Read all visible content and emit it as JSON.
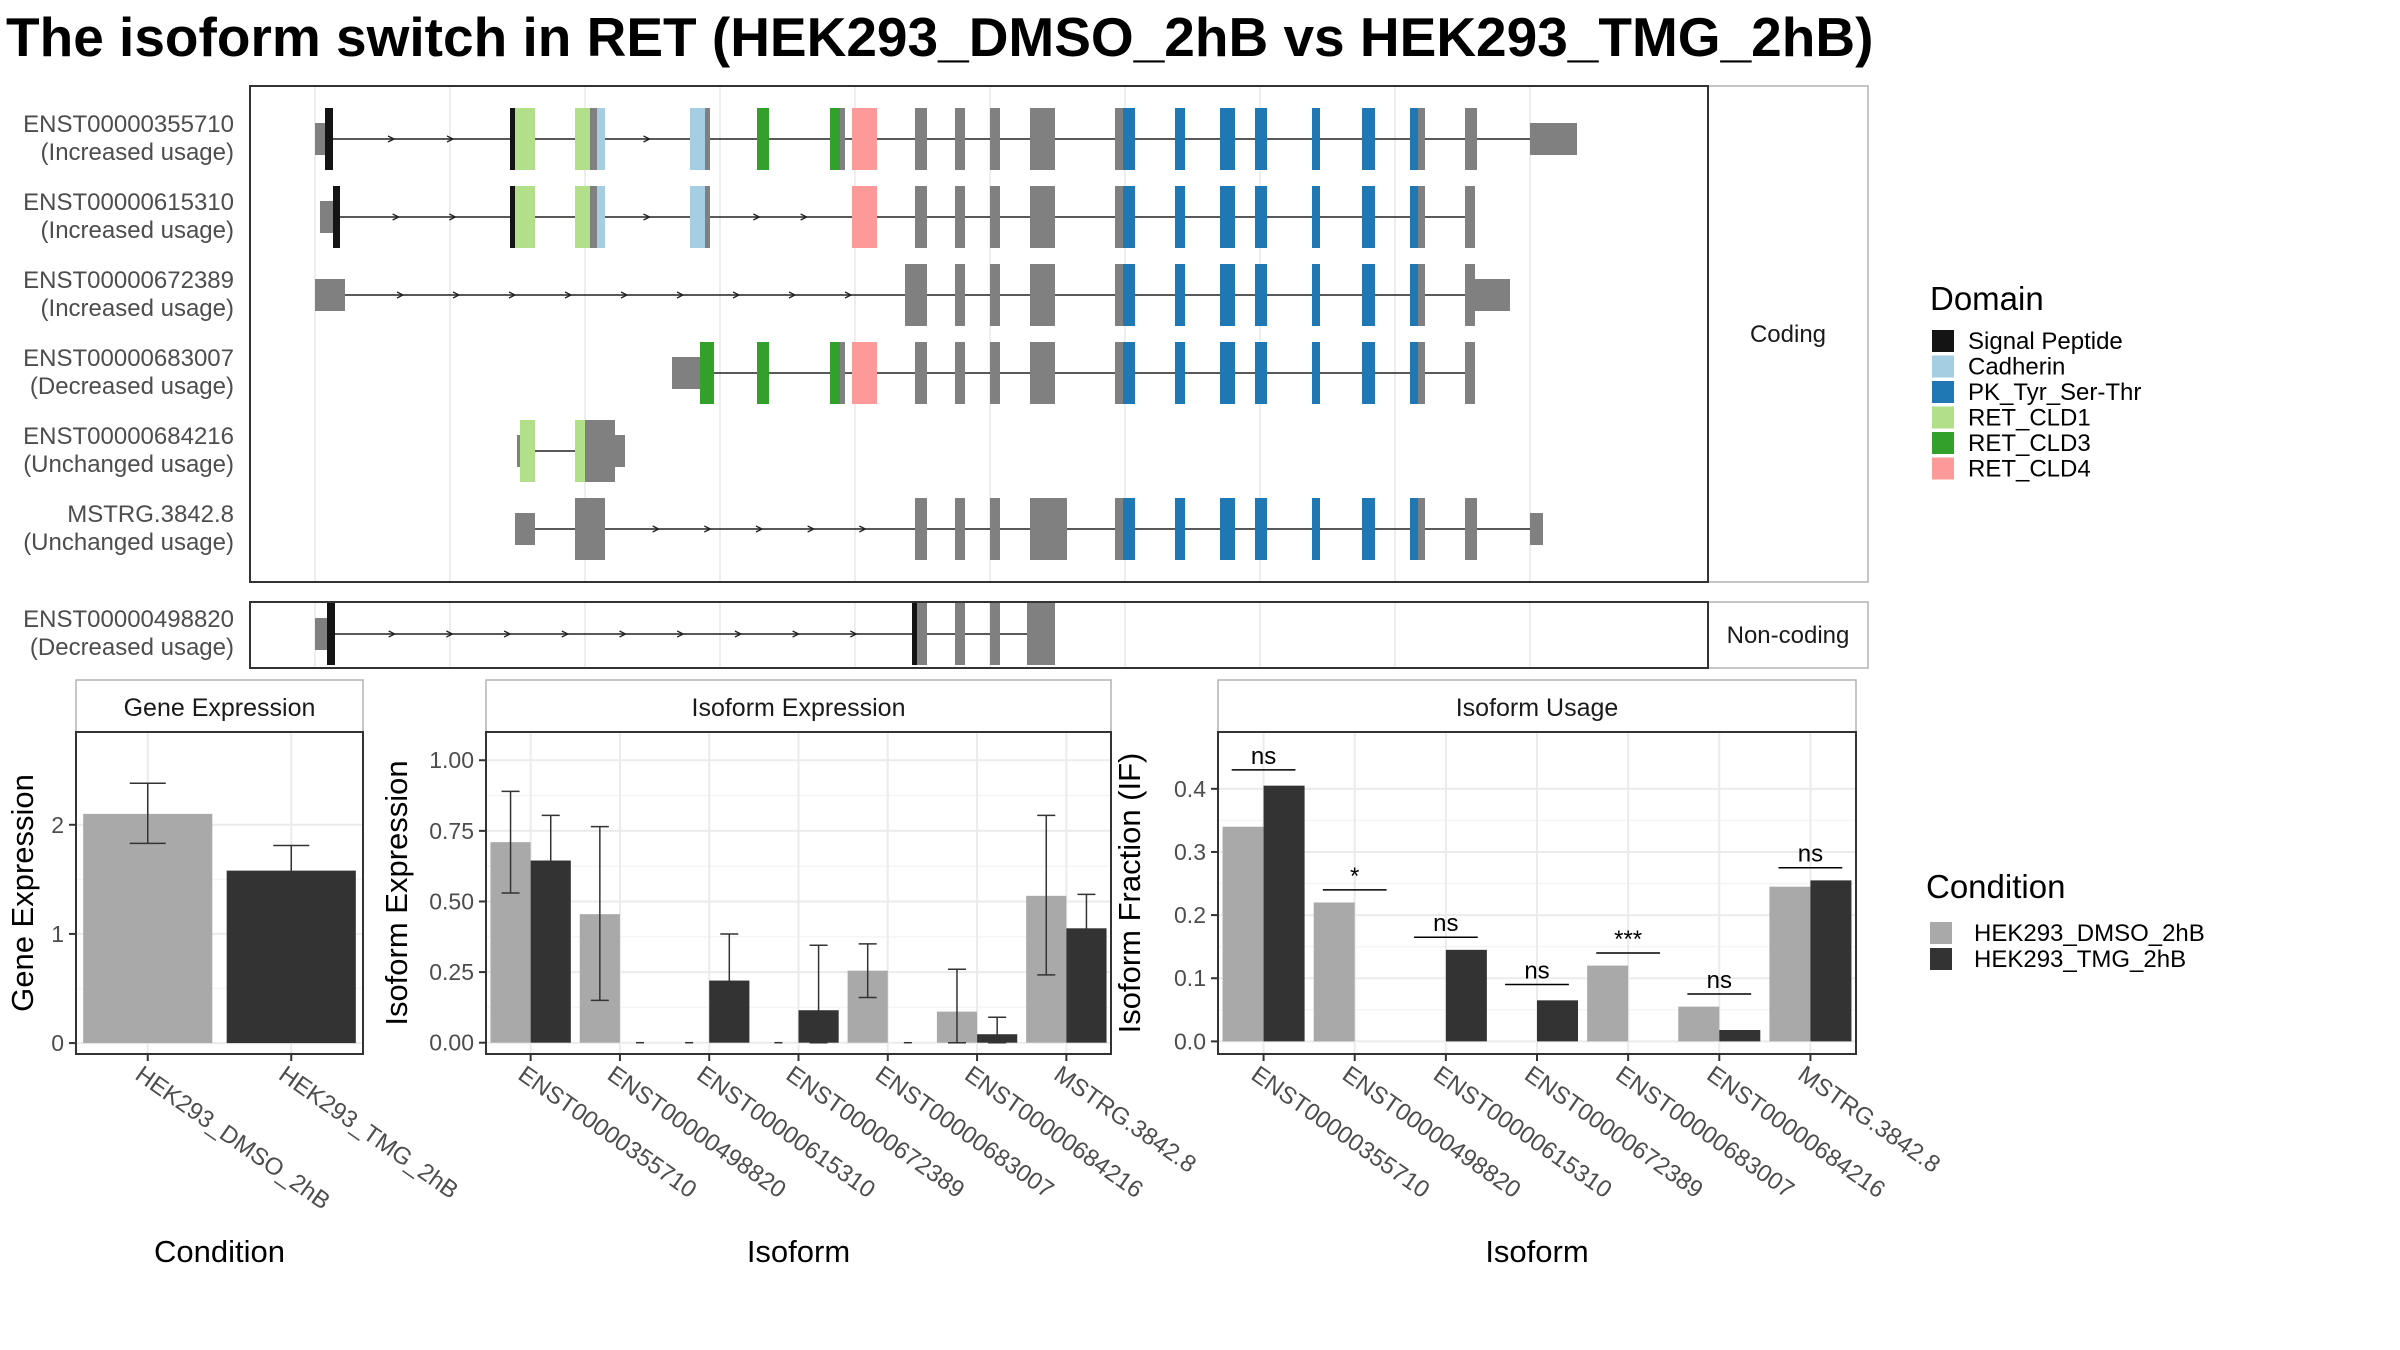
{
  "title": "The isoform switch in RET (HEK293_DMSO_2hB vs HEK293_TMG_2hB)",
  "structure": {
    "coding_label": "Coding",
    "noncoding_label": "Non-coding",
    "transcripts": [
      {
        "id": "ENST00000355710",
        "usage": "(Increased usage)",
        "group": "coding",
        "exons": [
          [
            0,
            10,
            "n"
          ],
          [
            10,
            18,
            "Signal Peptide"
          ],
          [
            195,
            200,
            "Signal Peptide"
          ],
          [
            200,
            220,
            "RET_CLD1"
          ],
          [
            260,
            275,
            "RET_CLD1"
          ],
          [
            275,
            282,
            "n"
          ],
          [
            282,
            290,
            "Cadherin"
          ],
          [
            375,
            390,
            "Cadherin"
          ],
          [
            390,
            395,
            "n"
          ],
          [
            442,
            454,
            "RET_CLD3"
          ],
          [
            515,
            525,
            "RET_CLD3"
          ],
          [
            525,
            530,
            "n"
          ],
          [
            537,
            562,
            "RET_CLD4"
          ],
          [
            600,
            612,
            "n"
          ],
          [
            640,
            650,
            "n"
          ],
          [
            675,
            685,
            "n"
          ],
          [
            715,
            740,
            "n"
          ],
          [
            800,
            808,
            "n"
          ],
          [
            808,
            820,
            "PK_Tyr_Ser-Thr"
          ],
          [
            860,
            870,
            "PK_Tyr_Ser-Thr"
          ],
          [
            905,
            920,
            "PK_Tyr_Ser-Thr"
          ],
          [
            940,
            952,
            "PK_Tyr_Ser-Thr"
          ],
          [
            997,
            1005,
            "PK_Tyr_Ser-Thr"
          ],
          [
            1047,
            1060,
            "PK_Tyr_Ser-Thr"
          ],
          [
            1095,
            1103,
            "PK_Tyr_Ser-Thr"
          ],
          [
            1103,
            1110,
            "n"
          ],
          [
            1150,
            1162,
            "n"
          ],
          [
            1215,
            1262,
            "n"
          ]
        ]
      },
      {
        "id": "ENST00000615310",
        "usage": "(Increased usage)",
        "group": "coding",
        "exons": [
          [
            5,
            18,
            "n"
          ],
          [
            18,
            25,
            "Signal Peptide"
          ],
          [
            195,
            200,
            "Signal Peptide"
          ],
          [
            200,
            220,
            "RET_CLD1"
          ],
          [
            260,
            275,
            "RET_CLD1"
          ],
          [
            275,
            282,
            "n"
          ],
          [
            282,
            290,
            "Cadherin"
          ],
          [
            375,
            390,
            "Cadherin"
          ],
          [
            390,
            395,
            "n"
          ],
          [
            537,
            562,
            "RET_CLD4"
          ],
          [
            600,
            612,
            "n"
          ],
          [
            640,
            650,
            "n"
          ],
          [
            675,
            685,
            "n"
          ],
          [
            715,
            740,
            "n"
          ],
          [
            800,
            808,
            "n"
          ],
          [
            808,
            820,
            "PK_Tyr_Ser-Thr"
          ],
          [
            860,
            870,
            "PK_Tyr_Ser-Thr"
          ],
          [
            905,
            920,
            "PK_Tyr_Ser-Thr"
          ],
          [
            940,
            952,
            "PK_Tyr_Ser-Thr"
          ],
          [
            997,
            1005,
            "PK_Tyr_Ser-Thr"
          ],
          [
            1047,
            1060,
            "PK_Tyr_Ser-Thr"
          ],
          [
            1095,
            1103,
            "PK_Tyr_Ser-Thr"
          ],
          [
            1103,
            1110,
            "n"
          ],
          [
            1150,
            1160,
            "n"
          ]
        ]
      },
      {
        "id": "ENST00000672389",
        "usage": "(Increased usage)",
        "group": "coding",
        "exons": [
          [
            0,
            30,
            "n"
          ],
          [
            590,
            600,
            "n"
          ],
          [
            600,
            612,
            "n"
          ],
          [
            640,
            650,
            "n"
          ],
          [
            675,
            685,
            "n"
          ],
          [
            715,
            740,
            "n"
          ],
          [
            800,
            808,
            "n"
          ],
          [
            808,
            820,
            "PK_Tyr_Ser-Thr"
          ],
          [
            860,
            870,
            "PK_Tyr_Ser-Thr"
          ],
          [
            905,
            920,
            "PK_Tyr_Ser-Thr"
          ],
          [
            940,
            952,
            "PK_Tyr_Ser-Thr"
          ],
          [
            997,
            1005,
            "PK_Tyr_Ser-Thr"
          ],
          [
            1047,
            1060,
            "PK_Tyr_Ser-Thr"
          ],
          [
            1095,
            1103,
            "PK_Tyr_Ser-Thr"
          ],
          [
            1103,
            1110,
            "n"
          ],
          [
            1150,
            1160,
            "n"
          ],
          [
            1160,
            1195,
            "n"
          ]
        ]
      },
      {
        "id": "ENST00000683007",
        "usage": "(Decreased usage)",
        "group": "coding",
        "exons": [
          [
            357,
            385,
            "n"
          ],
          [
            385,
            399,
            "RET_CLD3"
          ],
          [
            442,
            454,
            "RET_CLD3"
          ],
          [
            515,
            525,
            "RET_CLD3"
          ],
          [
            525,
            530,
            "n"
          ],
          [
            537,
            562,
            "RET_CLD4"
          ],
          [
            600,
            612,
            "n"
          ],
          [
            640,
            650,
            "n"
          ],
          [
            675,
            685,
            "n"
          ],
          [
            715,
            740,
            "n"
          ],
          [
            800,
            808,
            "n"
          ],
          [
            808,
            820,
            "PK_Tyr_Ser-Thr"
          ],
          [
            860,
            870,
            "PK_Tyr_Ser-Thr"
          ],
          [
            905,
            920,
            "PK_Tyr_Ser-Thr"
          ],
          [
            940,
            952,
            "PK_Tyr_Ser-Thr"
          ],
          [
            997,
            1005,
            "PK_Tyr_Ser-Thr"
          ],
          [
            1047,
            1060,
            "PK_Tyr_Ser-Thr"
          ],
          [
            1095,
            1103,
            "PK_Tyr_Ser-Thr"
          ],
          [
            1103,
            1110,
            "n"
          ],
          [
            1150,
            1160,
            "n"
          ]
        ]
      },
      {
        "id": "ENST00000684216",
        "usage": "(Unchanged usage)",
        "group": "coding",
        "exons": [
          [
            202,
            205,
            "n"
          ],
          [
            205,
            220,
            "RET_CLD1"
          ],
          [
            260,
            270,
            "RET_CLD1"
          ],
          [
            270,
            300,
            "n"
          ],
          [
            300,
            310,
            "n"
          ]
        ]
      },
      {
        "id": "MSTRG.3842.8",
        "usage": "(Unchanged usage)",
        "group": "coding",
        "exons": [
          [
            200,
            220,
            "n"
          ],
          [
            260,
            290,
            "n"
          ],
          [
            600,
            612,
            "n"
          ],
          [
            640,
            650,
            "n"
          ],
          [
            675,
            685,
            "n"
          ],
          [
            715,
            740,
            "n"
          ],
          [
            740,
            752,
            "n"
          ],
          [
            800,
            808,
            "n"
          ],
          [
            808,
            820,
            "PK_Tyr_Ser-Thr"
          ],
          [
            860,
            870,
            "PK_Tyr_Ser-Thr"
          ],
          [
            905,
            920,
            "PK_Tyr_Ser-Thr"
          ],
          [
            940,
            952,
            "PK_Tyr_Ser-Thr"
          ],
          [
            997,
            1005,
            "PK_Tyr_Ser-Thr"
          ],
          [
            1047,
            1060,
            "PK_Tyr_Ser-Thr"
          ],
          [
            1095,
            1103,
            "PK_Tyr_Ser-Thr"
          ],
          [
            1103,
            1110,
            "n"
          ],
          [
            1150,
            1162,
            "n"
          ],
          [
            1215,
            1228,
            "n"
          ]
        ]
      },
      {
        "id": "ENST00000498820",
        "usage": "(Decreased usage)",
        "group": "noncoding",
        "exons": [
          [
            0,
            12,
            "n"
          ],
          [
            12,
            20,
            "Signal Peptide"
          ],
          [
            597,
            602,
            "Signal Peptide"
          ],
          [
            602,
            612,
            "n"
          ],
          [
            640,
            650,
            "n"
          ],
          [
            675,
            685,
            "n"
          ],
          [
            712,
            740,
            "n"
          ]
        ]
      }
    ]
  },
  "domain_legend": {
    "title": "Domain",
    "items": [
      {
        "label": "Signal Peptide",
        "color": "#141414"
      },
      {
        "label": "Cadherin",
        "color": "#a6cee3"
      },
      {
        "label": "PK_Tyr_Ser-Thr",
        "color": "#1f78b4"
      },
      {
        "label": "RET_CLD1",
        "color": "#b2df8a"
      },
      {
        "label": "RET_CLD3",
        "color": "#33a02c"
      },
      {
        "label": "RET_CLD4",
        "color": "#fb9a99"
      }
    ]
  },
  "condition_legend": {
    "title": "Condition",
    "items": [
      {
        "label": "HEK293_DMSO_2hB",
        "color": "#a9a9a9"
      },
      {
        "label": "HEK293_TMG_2hB",
        "color": "#333333"
      }
    ]
  },
  "colors": {
    "noncoding_exon": "#808080",
    "intron": "#222222"
  },
  "chart_data": [
    {
      "type": "bar",
      "title": "Gene Expression",
      "xlabel": "Condition",
      "ylabel": "Gene Expression",
      "categories": [
        "HEK293_DMSO_2hB",
        "HEK293_TMG_2hB"
      ],
      "values": [
        2.1,
        1.58
      ],
      "errors": [
        [
          1.83,
          2.38
        ],
        [
          1.36,
          1.81
        ]
      ],
      "ylim": [
        -0.1,
        2.85
      ],
      "yticks": [
        0,
        1,
        2
      ],
      "ytick_labels": [
        "0",
        "1",
        "2"
      ],
      "grid": true
    },
    {
      "type": "bar",
      "title": "Isoform Expression",
      "xlabel": "Isoform",
      "ylabel": "Isoform Expression",
      "categories": [
        "ENST00000355710",
        "ENST00000498820",
        "ENST00000615310",
        "ENST00000672389",
        "ENST00000683007",
        "ENST00000684216",
        "MSTRG.3842.8"
      ],
      "series": [
        {
          "name": "HEK293_DMSO_2hB",
          "values": [
            0.71,
            0.455,
            0,
            0,
            0.255,
            0.11,
            0.52
          ],
          "errors": [
            [
              0.53,
              0.89
            ],
            [
              0.15,
              0.765
            ],
            null,
            null,
            [
              0.16,
              0.35
            ],
            [
              0,
              0.26
            ],
            [
              0.24,
              0.805
            ]
          ]
        },
        {
          "name": "HEK293_TMG_2hB",
          "values": [
            0.645,
            0,
            0.22,
            0.115,
            0,
            0.03,
            0.405
          ],
          "errors": [
            [
              0.485,
              0.805
            ],
            null,
            [
              0.05,
              0.385
            ],
            [
              0,
              0.345
            ],
            null,
            [
              0,
              0.09
            ],
            [
              0.29,
              0.525
            ]
          ]
        }
      ],
      "ylim": [
        -0.04,
        1.1
      ],
      "yticks": [
        0,
        0.25,
        0.5,
        0.75,
        1
      ],
      "ytick_labels": [
        "0.00",
        "0.25",
        "0.50",
        "0.75",
        "1.00"
      ],
      "grid": true
    },
    {
      "type": "bar",
      "title": "Isoform Usage",
      "xlabel": "Isoform",
      "ylabel": "Isoform Fraction (IF)",
      "categories": [
        "ENST00000355710",
        "ENST00000498820",
        "ENST00000615310",
        "ENST00000672389",
        "ENST00000683007",
        "ENST00000684216",
        "MSTRG.3842.8"
      ],
      "series": [
        {
          "name": "HEK293_DMSO_2hB",
          "values": [
            0.34,
            0.22,
            0,
            0,
            0.12,
            0.055,
            0.245
          ]
        },
        {
          "name": "HEK293_TMG_2hB",
          "values": [
            0.405,
            0,
            0.145,
            0.065,
            0,
            0.018,
            0.255
          ]
        }
      ],
      "significance": [
        {
          "label": "ns",
          "y": 0.43
        },
        {
          "label": "*",
          "y": 0.24
        },
        {
          "label": "ns",
          "y": 0.165
        },
        {
          "label": "ns",
          "y": 0.09
        },
        {
          "label": "***",
          "y": 0.14
        },
        {
          "label": "ns",
          "y": 0.075
        },
        {
          "label": "ns",
          "y": 0.275
        }
      ],
      "ylim": [
        -0.02,
        0.49
      ],
      "yticks": [
        0,
        0.1,
        0.2,
        0.3,
        0.4
      ],
      "ytick_labels": [
        "0.0",
        "0.1",
        "0.2",
        "0.3",
        "0.4"
      ],
      "grid": true
    }
  ]
}
